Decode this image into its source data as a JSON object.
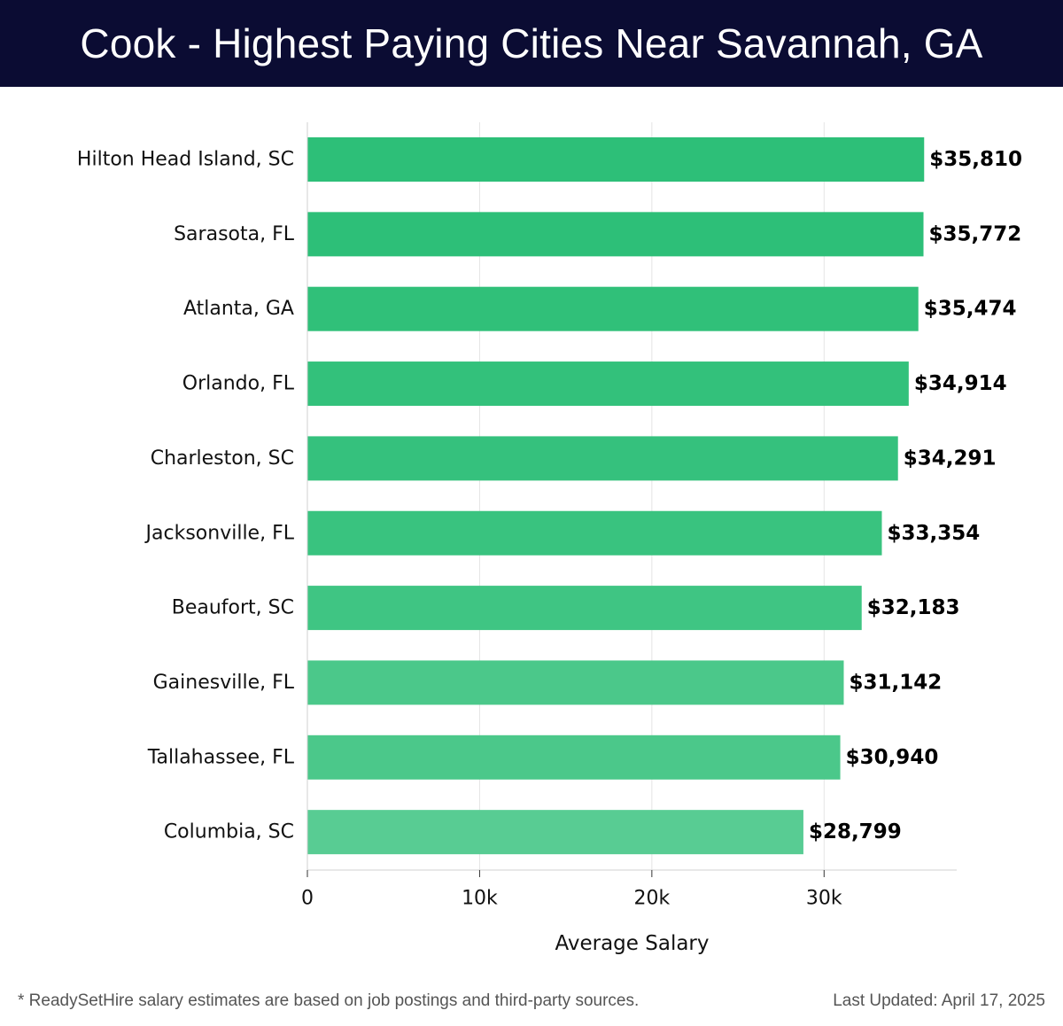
{
  "header": {
    "title": "Cook - Highest Paying Cities Near Savannah, GA"
  },
  "chart_data": {
    "type": "bar",
    "orientation": "horizontal",
    "categories": [
      "Hilton Head Island, SC",
      "Sarasota, FL",
      "Atlanta, GA",
      "Orlando, FL",
      "Charleston, SC",
      "Jacksonville, FL",
      "Beaufort, SC",
      "Gainesville, FL",
      "Tallahassee, FL",
      "Columbia, SC"
    ],
    "values": [
      35810,
      35772,
      35474,
      34914,
      34291,
      33354,
      32183,
      31142,
      30940,
      28799
    ],
    "value_labels": [
      "$35,810",
      "$35,772",
      "$35,474",
      "$34,914",
      "$34,291",
      "$33,354",
      "$32,183",
      "$31,142",
      "$30,940",
      "$28,799"
    ],
    "xlabel": "Average Salary",
    "ylabel": "",
    "xlim": [
      0,
      37700
    ],
    "xticks": [
      0,
      10000,
      20000,
      30000
    ],
    "xtick_labels": [
      "0",
      "10k",
      "20k",
      "30k"
    ],
    "grid": true,
    "bar_colors": [
      "#2dbf78",
      "#2dbf78",
      "#30c079",
      "#33c17b",
      "#35c17d",
      "#39c37f",
      "#3fc583",
      "#4bc88a",
      "#4bc88a",
      "#58cc93"
    ]
  },
  "footer": {
    "note": "* ReadySetHire salary estimates are based on job postings and third-party sources.",
    "updated": "Last Updated: April 17, 2025"
  }
}
